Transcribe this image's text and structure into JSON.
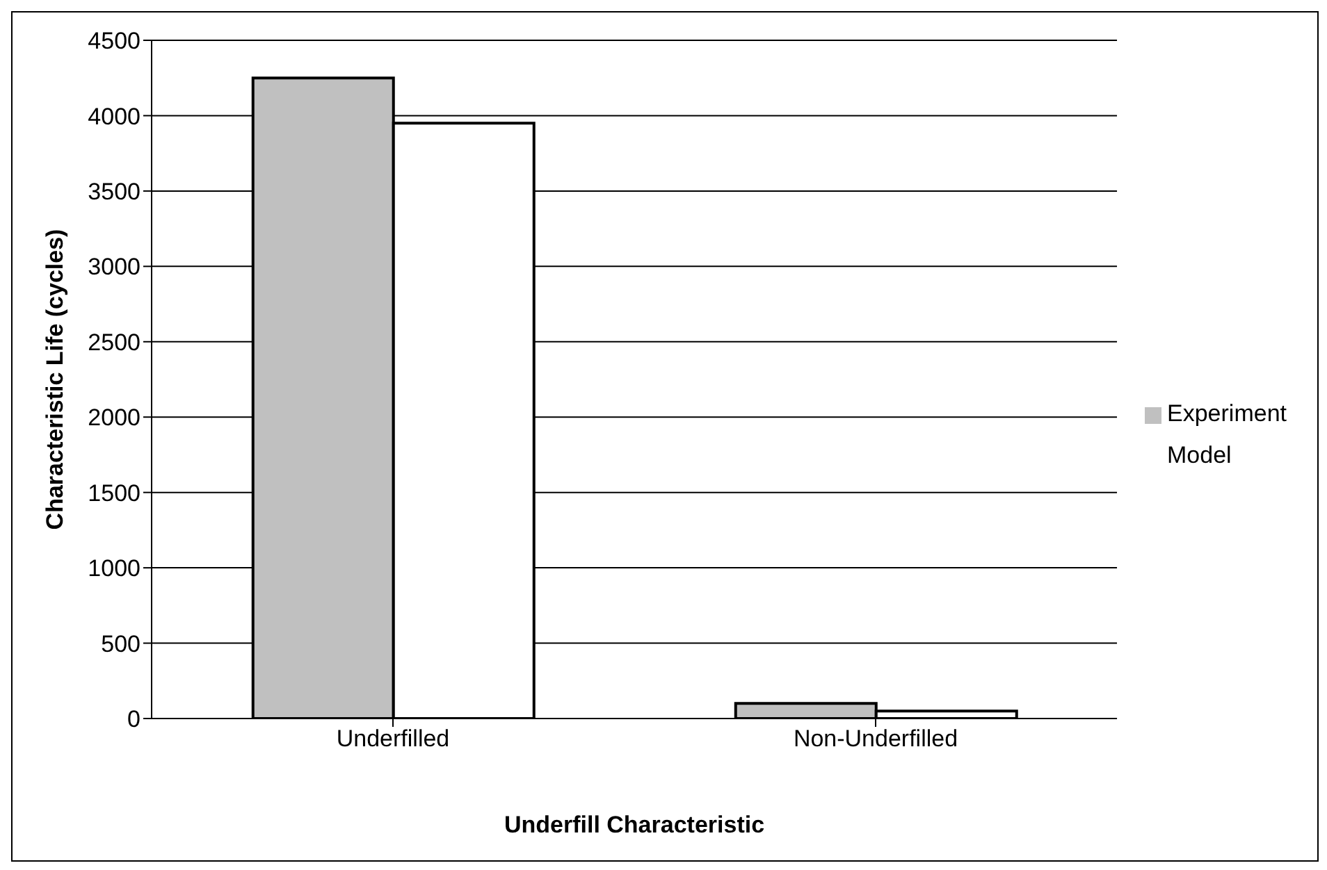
{
  "chart_data": {
    "type": "bar",
    "xlabel": "Underfill Characteristic",
    "ylabel": "Characteristic Life (cycles)",
    "categories": [
      "Underfilled",
      "Non-Underfilled"
    ],
    "series": [
      {
        "name": "Experiment",
        "color": "#c0c0c0",
        "values": [
          4250,
          100
        ]
      },
      {
        "name": "Model",
        "color": "#ffffff",
        "values": [
          3950,
          50
        ]
      }
    ],
    "ylim": [
      0,
      4500
    ],
    "yticks": [
      0,
      500,
      1000,
      1500,
      2000,
      2500,
      3000,
      3500,
      4000,
      4500
    ],
    "grid": "y",
    "legend": "right"
  }
}
